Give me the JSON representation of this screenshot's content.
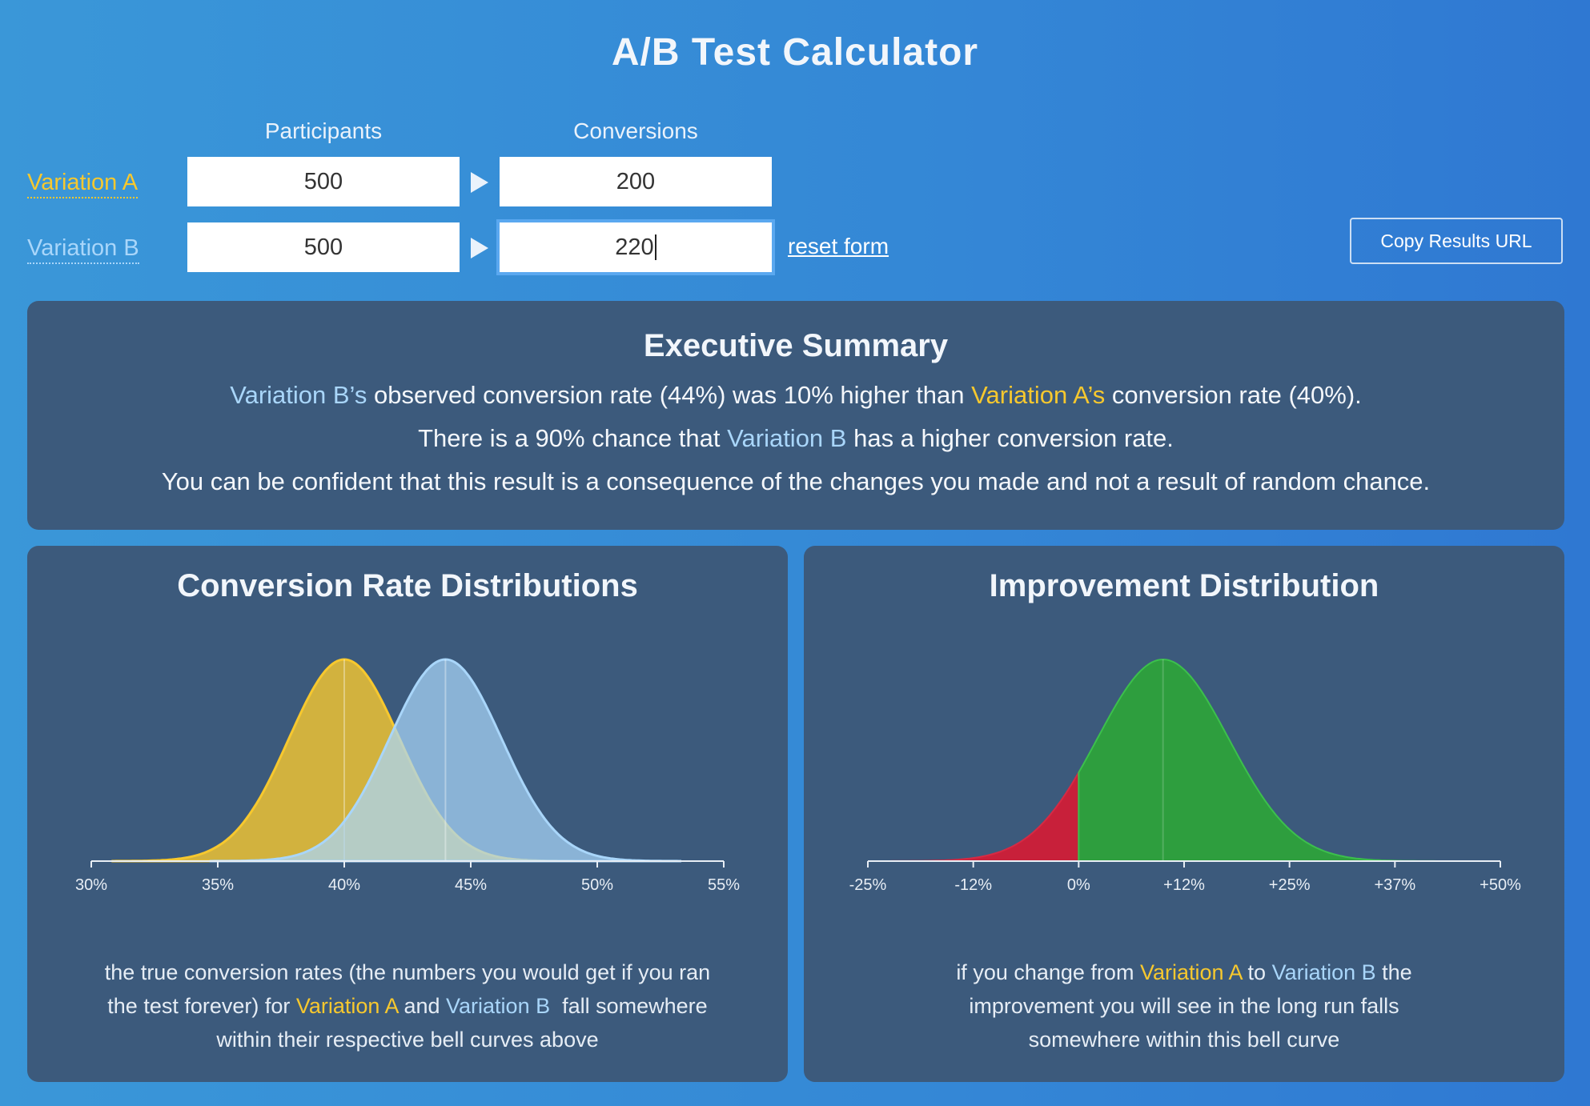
{
  "title": "A/B Test Calculator",
  "form": {
    "participants_header": "Participants",
    "conversions_header": "Conversions",
    "variation_a": {
      "label": "Variation A",
      "participants": "500",
      "conversions": "200"
    },
    "variation_b": {
      "label": "Variation B",
      "participants": "500",
      "conversions": "220"
    },
    "reset_label": "reset form",
    "copy_label": "Copy Results URL"
  },
  "summary": {
    "title": "Executive Summary",
    "line1": {
      "b_name": "Variation B’s",
      "part1": " observed conversion rate (44%) was 10% higher than ",
      "a_name": "Variation A’s",
      "part2": " conversion rate (40%)."
    },
    "line2": {
      "part1": "There is a 90% chance that ",
      "b_name": "Variation B",
      "part2": " has a higher conversion rate."
    },
    "line3": "You can be confident that this result is a consequence of the changes you made and not a result of random chance."
  },
  "colors": {
    "variation_a": "#f7c82e",
    "variation_b": "#a9d6fa",
    "improvement_positive": "#2e9e3e",
    "improvement_negative": "#c8203a",
    "panel": "#3c5a7c"
  },
  "chart_data": [
    {
      "type": "area",
      "title": "Conversion Rate Distributions",
      "x_ticks": [
        "30%",
        "35%",
        "40%",
        "45%",
        "50%",
        "55%"
      ],
      "xlim": [
        30,
        55
      ],
      "series": [
        {
          "name": "Variation A",
          "mean": 40,
          "sd": 2.19,
          "color": "#f7c82e"
        },
        {
          "name": "Variation B",
          "mean": 44,
          "sd": 2.22,
          "color": "#a9d6fa"
        }
      ],
      "caption": {
        "line1": "the true conversion rates (the numbers you would get if you ran",
        "line2_part1": "the test forever) for ",
        "a_name": "Variation A",
        "line2_part2": " and ",
        "b_name": "Variation B",
        "line2_part3": "  fall somewhere",
        "line3": "within their respective bell curves above"
      }
    },
    {
      "type": "area",
      "title": "Improvement Distribution",
      "x_ticks": [
        "-25%",
        "-12%",
        "0%",
        "+12%",
        "+25%",
        "+37%",
        "+50%"
      ],
      "xlim": [
        -25,
        50
      ],
      "series": [
        {
          "name": "Improvement",
          "mean": 10,
          "sd": 7.8,
          "split_at": 0
        }
      ],
      "caption": {
        "part1": "if you change from ",
        "a_name": "Variation A",
        "part2": " to ",
        "b_name": "Variation B",
        "part3": " the",
        "line2": "improvement you will see in the long run falls",
        "line3": "somewhere within this bell curve"
      }
    }
  ]
}
